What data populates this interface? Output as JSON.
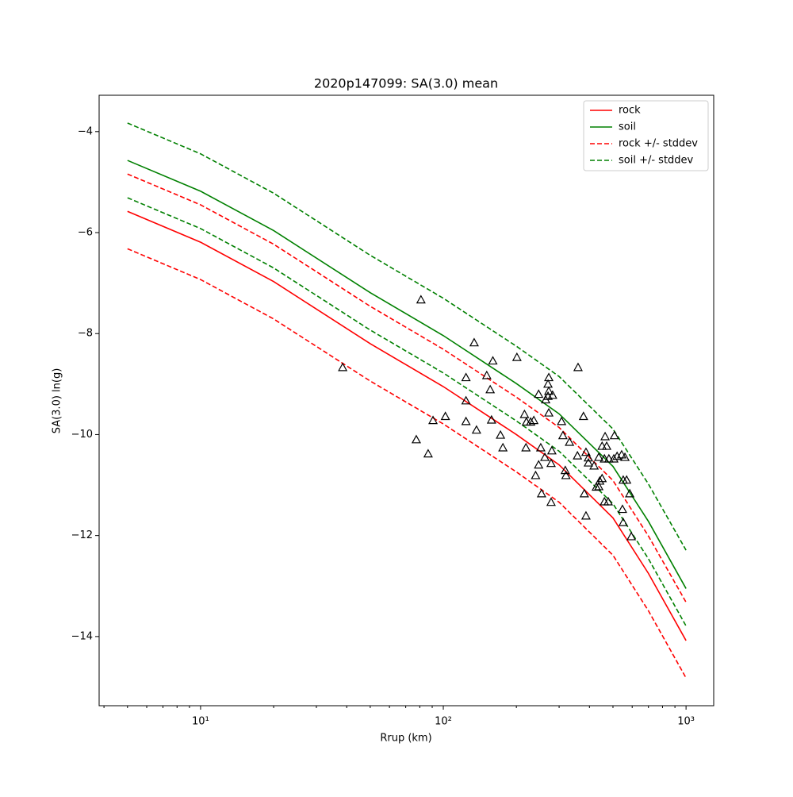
{
  "chart_data": {
    "type": "line",
    "title": "2020p147099: SA(3.0) mean",
    "xlabel": "Rrup (km)",
    "ylabel": "SA(3.0) ln(g)",
    "xscale": "log",
    "xlim": [
      3.82,
      1300
    ],
    "ylim": [
      -15.37,
      -3.28
    ],
    "xticks": [
      {
        "value": 10,
        "label": "10¹"
      },
      {
        "value": 100,
        "label": "10²"
      },
      {
        "value": 1000,
        "label": "10³"
      }
    ],
    "xminorticks": [
      4,
      5,
      6,
      7,
      8,
      9,
      20,
      30,
      40,
      50,
      60,
      70,
      80,
      90,
      200,
      300,
      400,
      500,
      600,
      700,
      800,
      900
    ],
    "yticks": [
      -4,
      -6,
      -8,
      -10,
      -12,
      -14
    ],
    "legend": "upper right",
    "x": [
      5,
      10,
      20,
      50,
      100,
      200,
      300,
      500,
      700,
      1000
    ],
    "series": [
      {
        "name": "rock",
        "color": "#ff0000",
        "style": "solid",
        "values": [
          -5.58,
          -6.19,
          -6.97,
          -8.2,
          -9.05,
          -10.0,
          -10.6,
          -11.65,
          -12.75,
          -14.08
        ]
      },
      {
        "name": "soil",
        "color": "#008000",
        "style": "solid",
        "values": [
          -4.57,
          -5.18,
          -5.96,
          -7.19,
          -8.04,
          -8.99,
          -9.59,
          -10.63,
          -11.72,
          -13.05
        ]
      },
      {
        "name": "rock +/- stddev",
        "color": "#ff0000",
        "style": "dashed",
        "upper": [
          -4.84,
          -5.45,
          -6.23,
          -7.46,
          -8.31,
          -9.26,
          -9.86,
          -10.91,
          -12.01,
          -13.32
        ],
        "lower": [
          -6.32,
          -6.93,
          -7.71,
          -8.94,
          -9.79,
          -10.74,
          -11.34,
          -12.39,
          -13.49,
          -14.82
        ]
      },
      {
        "name": "soil +/- stddev",
        "color": "#008000",
        "style": "dashed",
        "upper": [
          -3.83,
          -4.44,
          -5.22,
          -6.45,
          -7.3,
          -8.25,
          -8.85,
          -9.89,
          -10.98,
          -12.29
        ],
        "lower": [
          -5.31,
          -5.92,
          -6.7,
          -7.93,
          -8.78,
          -9.73,
          -10.33,
          -11.37,
          -12.46,
          -13.79
        ]
      }
    ],
    "observations": {
      "color": "#000000",
      "x": [
        38.5,
        77.4,
        80.9,
        86.6,
        90.7,
        102,
        124,
        124,
        124,
        134,
        137,
        151,
        156,
        158,
        160,
        172,
        176,
        201,
        216,
        219,
        220,
        229,
        236,
        240,
        247,
        247,
        252,
        254,
        262,
        264,
        270,
        270,
        272,
        272,
        272,
        278,
        280,
        278,
        282,
        307,
        311,
        318,
        320,
        331,
        357,
        359,
        378,
        381,
        387,
        387,
        396,
        396,
        418,
        427,
        437,
        437,
        441,
        451,
        451,
        461,
        461,
        464,
        471,
        478,
        481,
        504,
        507,
        520,
        543,
        547,
        551,
        551,
        569,
        560,
        586,
        595
      ],
      "values": [
        -8.67,
        -10.1,
        -7.33,
        -10.38,
        -9.72,
        -9.64,
        -9.33,
        -8.87,
        -9.74,
        -8.18,
        -9.91,
        -8.83,
        -9.11,
        -9.71,
        -8.54,
        -10.01,
        -10.26,
        -8.47,
        -9.6,
        -10.26,
        -9.75,
        -9.75,
        -9.72,
        -10.81,
        -9.2,
        -10.6,
        -10.26,
        -11.17,
        -10.45,
        -9.31,
        -9.0,
        -9.24,
        -8.87,
        -9.57,
        -9.14,
        -10.57,
        -10.32,
        -11.34,
        -9.22,
        -9.74,
        -10.02,
        -10.71,
        -10.81,
        -10.15,
        -10.42,
        -8.67,
        -9.64,
        -11.17,
        -11.61,
        -10.35,
        -10.56,
        -10.46,
        -10.62,
        -11.04,
        -10.45,
        -11.03,
        -10.92,
        -10.87,
        -10.23,
        -10.48,
        -11.33,
        -10.04,
        -10.23,
        -11.33,
        -10.48,
        -10.48,
        -10.02,
        -10.43,
        -10.4,
        -11.48,
        -10.9,
        -11.74,
        -10.9,
        -10.45,
        -11.17,
        -12.02
      ]
    }
  }
}
